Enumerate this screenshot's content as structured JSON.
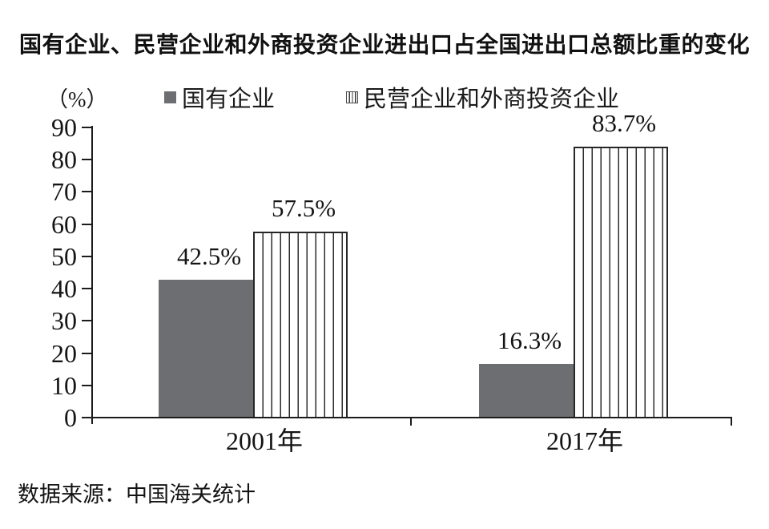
{
  "title": "国有企业、民营企业和外商投资企业进出口占全国进出口总额比重的变化",
  "unit_label": "（%）",
  "legend": [
    {
      "label": "国有企业",
      "style": "solid"
    },
    {
      "label": "民营企业和外商投资企业",
      "style": "striped"
    }
  ],
  "source": "数据来源：中国海关统计",
  "colors": {
    "bar_solid": "#6d6e71",
    "stripe_line": "#2b2b2b",
    "axis": "#1c1c1c"
  },
  "chart_data": {
    "type": "bar",
    "categories": [
      "2001年",
      "2017年"
    ],
    "series": [
      {
        "name": "国有企业",
        "style": "solid",
        "values": [
          42.5,
          16.3
        ],
        "labels": [
          "42.5%",
          "16.3%"
        ]
      },
      {
        "name": "民营企业和外商投资企业",
        "style": "striped",
        "values": [
          57.5,
          83.7
        ],
        "labels": [
          "57.5%",
          "83.7%"
        ]
      }
    ],
    "ylabel": "（%）",
    "ylim": [
      0,
      90
    ],
    "yticks": [
      0,
      10,
      20,
      30,
      40,
      50,
      60,
      70,
      80,
      90
    ],
    "grid": false,
    "legend_position": "top",
    "source_note": "数据来源：中国海关统计"
  }
}
